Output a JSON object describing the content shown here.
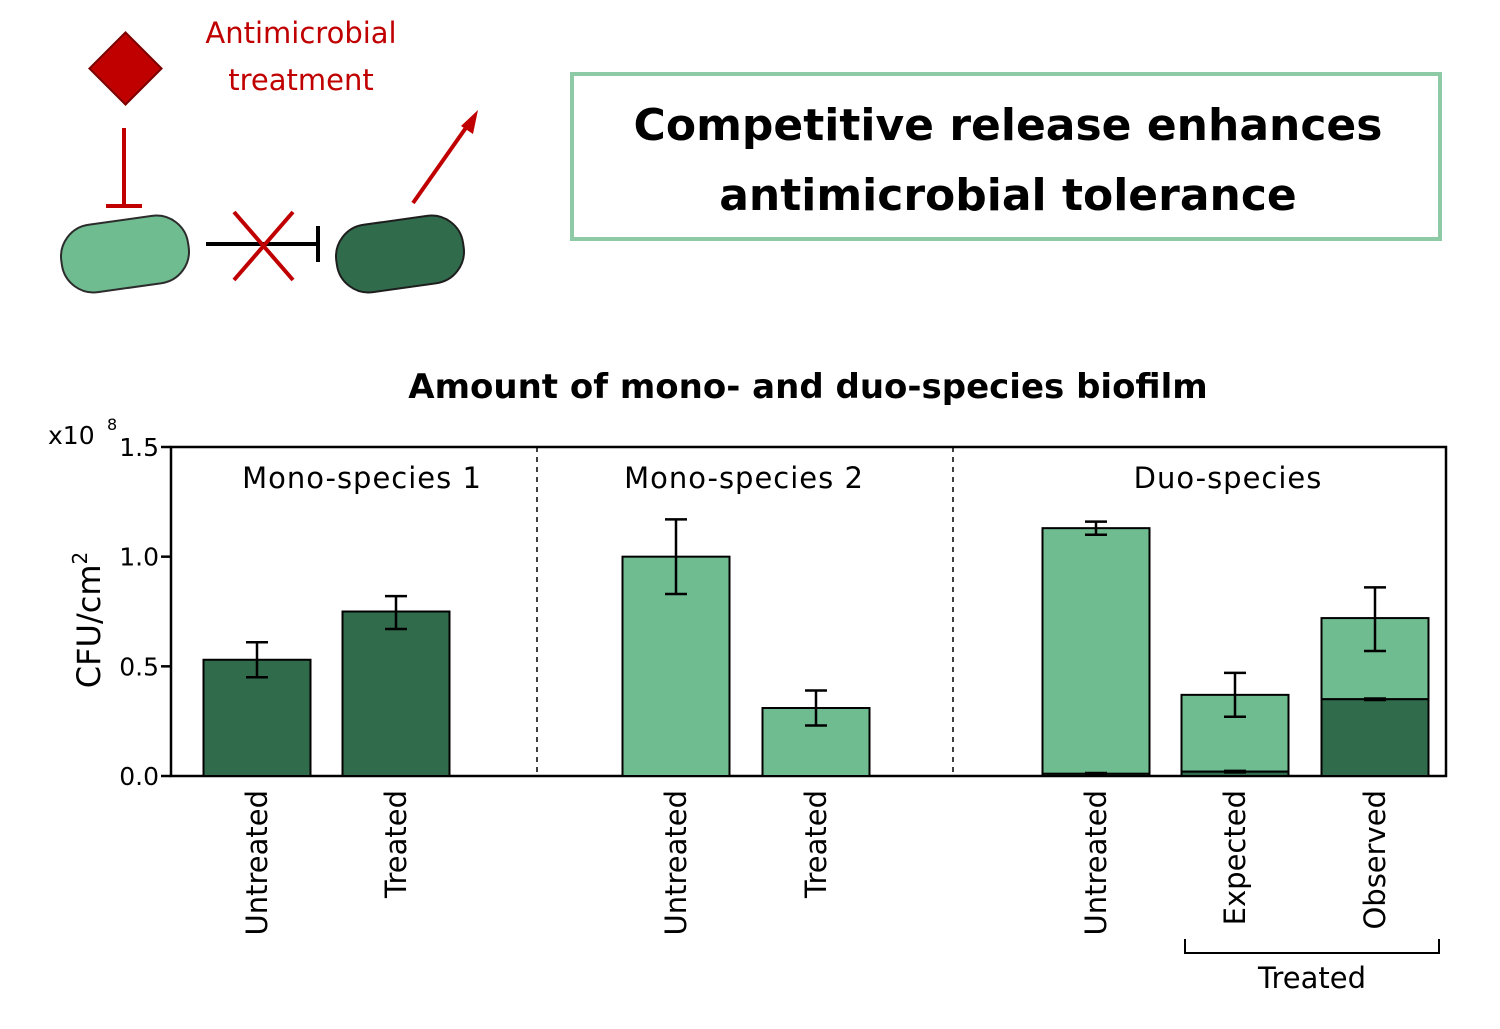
{
  "schematic": {
    "treatment_label_line1": "Antimicrobial",
    "treatment_label_line2": "treatment",
    "colors": {
      "treatment": "#c00000",
      "species1_cell": "#306b4c",
      "species2_cell": "#6fbc91",
      "inhibition": "#000000"
    }
  },
  "headline": {
    "line1": "Competitive release enhances",
    "line2": "antimicrobial tolerance",
    "border_color": "#8fcaa6"
  },
  "chart_data": {
    "type": "bar",
    "title": "Amount of mono- and duo-species biofilm",
    "ylabel": "CFU/cm",
    "ylabel_superscript": "2",
    "y_multiplier_base": "x10",
    "y_multiplier_exp": "8",
    "ylim": [
      0,
      1.5
    ],
    "yticks": [
      "0.0",
      "0.5",
      "1.0",
      "1.5"
    ],
    "ytick_values": [
      0,
      0.5,
      1.0,
      1.5
    ],
    "colors": {
      "species1": "#306b4c",
      "species2": "#6fbc91"
    },
    "groups": [
      {
        "label": "Mono-species 1",
        "bars": [
          {
            "label": "Untreated",
            "total": 0.53,
            "dark": 0.53,
            "err_low": 0.45,
            "err_high": 0.61
          },
          {
            "label": "Treated",
            "total": 0.75,
            "dark": 0.75,
            "err_low": 0.67,
            "err_high": 0.82
          }
        ]
      },
      {
        "label": "Mono-species 2",
        "bars": [
          {
            "label": "Untreated",
            "total": 1.0,
            "dark": 0,
            "err_low": 0.83,
            "err_high": 1.17
          },
          {
            "label": "Treated",
            "total": 0.31,
            "dark": 0,
            "err_low": 0.23,
            "err_high": 0.39
          }
        ]
      },
      {
        "label": "Duo-species",
        "bars": [
          {
            "label": "Untreated",
            "total": 1.13,
            "dark": 0.01,
            "err_low": 1.1,
            "err_high": 1.16
          },
          {
            "label": "Expected",
            "total": 0.37,
            "dark": 0.02,
            "err_low": 0.27,
            "err_high": 0.47
          },
          {
            "label": "Observed",
            "total": 0.72,
            "dark": 0.35,
            "err_low": 0.57,
            "err_high": 0.86
          }
        ],
        "bracket_label": "Treated"
      }
    ]
  }
}
